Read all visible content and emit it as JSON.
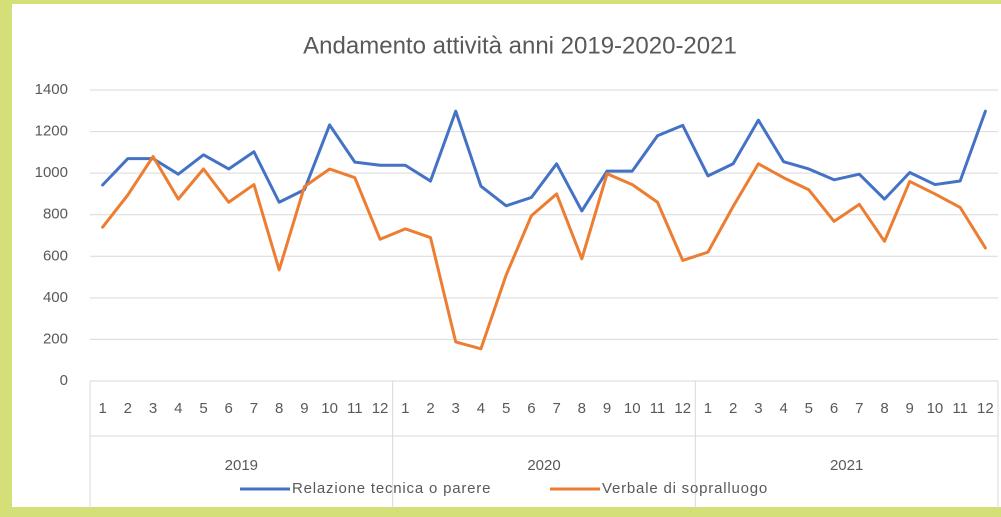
{
  "chart_data": {
    "type": "line",
    "title": "Andamento attività anni 2019-2020-2021",
    "categories": [
      "1",
      "2",
      "3",
      "4",
      "5",
      "6",
      "7",
      "8",
      "9",
      "10",
      "11",
      "12",
      "1",
      "2",
      "3",
      "4",
      "5",
      "6",
      "7",
      "8",
      "9",
      "10",
      "11",
      "12",
      "1",
      "2",
      "3",
      "4",
      "5",
      "6",
      "7",
      "8",
      "9",
      "10",
      "11",
      "12"
    ],
    "groups": [
      "2019",
      "2020",
      "2021"
    ],
    "series": [
      {
        "name": "Relazione tecnica o parere",
        "color": "#4472c4",
        "values": [
          943,
          1070,
          1070,
          995,
          1088,
          1020,
          1103,
          860,
          920,
          1232,
          1053,
          1038,
          1038,
          962,
          1298,
          937,
          843,
          883,
          1045,
          818,
          1010,
          1010,
          1180,
          1230,
          987,
          1045,
          1255,
          1055,
          1020,
          968,
          995,
          875,
          1003,
          945,
          962,
          1298
        ]
      },
      {
        "name": "Verbale di sopralluogo",
        "color": "#ed7d31",
        "values": [
          740,
          895,
          1080,
          875,
          1020,
          860,
          945,
          535,
          935,
          1020,
          978,
          682,
          732,
          690,
          188,
          155,
          510,
          795,
          900,
          588,
          997,
          945,
          860,
          580,
          620,
          840,
          1045,
          978,
          920,
          768,
          850,
          672,
          960,
          900,
          835,
          640
        ]
      }
    ],
    "ylim": [
      0,
      1400
    ],
    "yticks": [
      0,
      200,
      400,
      600,
      800,
      1000,
      1200,
      1400
    ],
    "grid": true,
    "legend": "bottom"
  }
}
